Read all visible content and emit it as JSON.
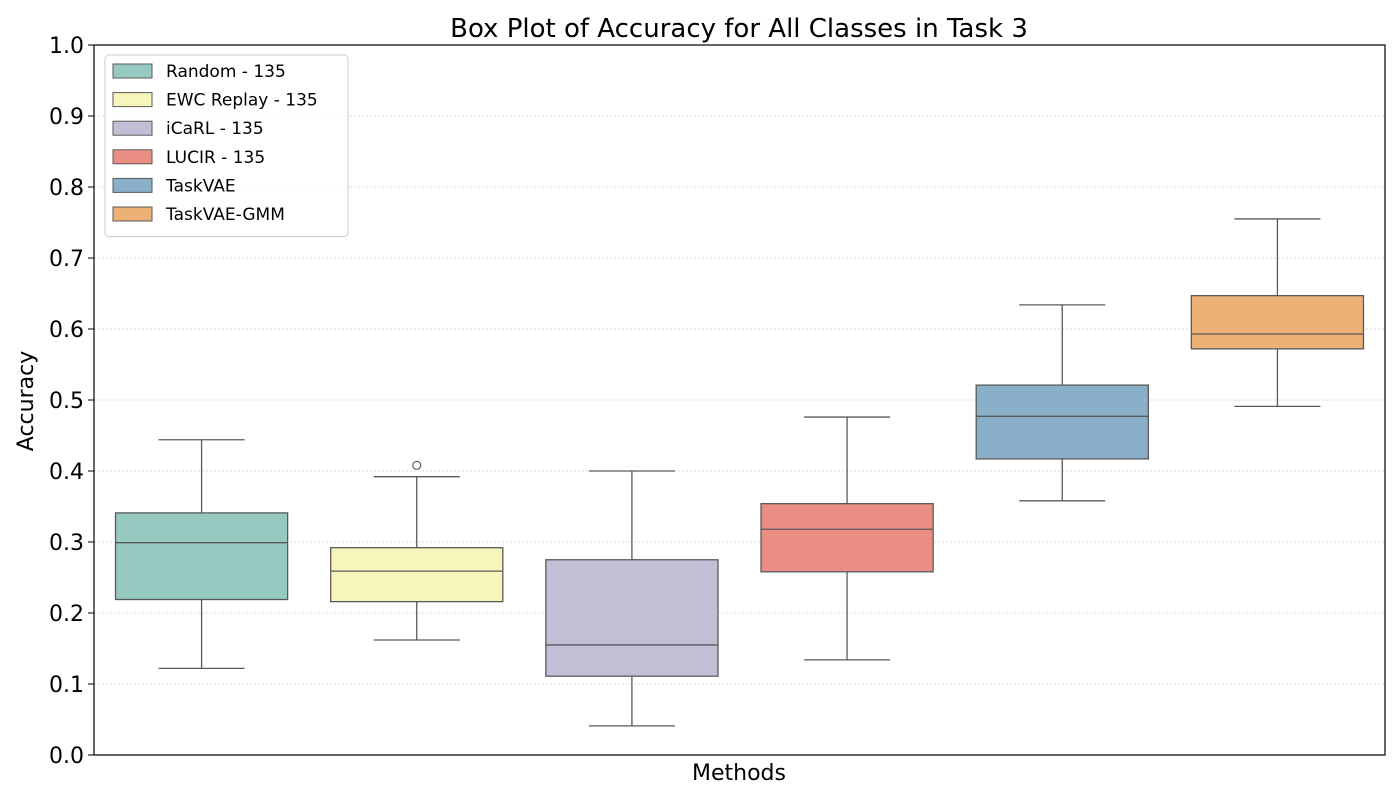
{
  "chart_data": {
    "type": "box",
    "title": "Box Plot of Accuracy for All Classes in Task 3",
    "xlabel": "Methods",
    "ylabel": "Accuracy",
    "ylim": [
      0.0,
      1.0
    ],
    "yticks": [
      "0.0",
      "0.1",
      "0.2",
      "0.3",
      "0.4",
      "0.5",
      "0.6",
      "0.7",
      "0.8",
      "0.9",
      "1.0"
    ],
    "grid": "horizontal dotted",
    "legend_position": "top-left",
    "series": [
      {
        "name": "Random - 135",
        "color": "#96cac1",
        "whisker_low": 0.122,
        "q1": 0.219,
        "median": 0.299,
        "q3": 0.341,
        "whisker_high": 0.444,
        "outliers": []
      },
      {
        "name": "EWC Replay - 135",
        "color": "#f6f6bc",
        "whisker_low": 0.162,
        "q1": 0.216,
        "median": 0.259,
        "q3": 0.292,
        "whisker_high": 0.392,
        "outliers": [
          0.408
        ]
      },
      {
        "name": "iCaRL - 135",
        "color": "#c1bed6",
        "whisker_low": 0.041,
        "q1": 0.111,
        "median": 0.155,
        "q3": 0.275,
        "whisker_high": 0.4,
        "outliers": []
      },
      {
        "name": "LUCIR - 135",
        "color": "#ea8e83",
        "whisker_low": 0.134,
        "q1": 0.258,
        "median": 0.318,
        "q3": 0.354,
        "whisker_high": 0.476,
        "outliers": []
      },
      {
        "name": "TaskVAE",
        "color": "#8aafc8",
        "whisker_low": 0.358,
        "q1": 0.417,
        "median": 0.477,
        "q3": 0.521,
        "whisker_high": 0.634,
        "outliers": []
      },
      {
        "name": "TaskVAE-GMM",
        "color": "#ecb176",
        "whisker_low": 0.491,
        "q1": 0.572,
        "median": 0.593,
        "q3": 0.647,
        "whisker_high": 0.755,
        "outliers": []
      }
    ]
  }
}
